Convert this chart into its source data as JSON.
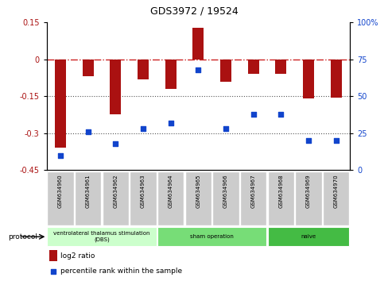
{
  "title": "GDS3972 / 19524",
  "samples": [
    "GSM634960",
    "GSM634961",
    "GSM634962",
    "GSM634963",
    "GSM634964",
    "GSM634965",
    "GSM634966",
    "GSM634967",
    "GSM634968",
    "GSM634969",
    "GSM634970"
  ],
  "log2_ratio": [
    -0.36,
    -0.07,
    -0.225,
    -0.08,
    -0.12,
    0.13,
    -0.09,
    -0.06,
    -0.06,
    -0.16,
    -0.155
  ],
  "percentile_rank": [
    10,
    26,
    18,
    28,
    32,
    68,
    28,
    38,
    38,
    20,
    20
  ],
  "bar_color": "#aa1111",
  "dot_color": "#1144cc",
  "ylim_left": [
    -0.45,
    0.15
  ],
  "ylim_right": [
    0,
    100
  ],
  "yticks_left": [
    0.15,
    0,
    -0.15,
    -0.3,
    -0.45
  ],
  "ytick_labels_left": [
    "0.15",
    "0",
    "-0.15",
    "-0.3",
    "-0.45"
  ],
  "yticks_right": [
    100,
    75,
    50,
    25,
    0
  ],
  "ytick_labels_right": [
    "100%",
    "75",
    "50",
    "25",
    "0"
  ],
  "protocol_groups": [
    {
      "label": "ventrolateral thalamus stimulation\n(DBS)",
      "start": 0,
      "end": 4,
      "color": "#ccffcc"
    },
    {
      "label": "sham operation",
      "start": 4,
      "end": 8,
      "color": "#77dd77"
    },
    {
      "label": "naive",
      "start": 8,
      "end": 11,
      "color": "#44bb44"
    }
  ],
  "legend_log2": "log2 ratio",
  "legend_pct": "percentile rank within the sample",
  "bar_color_legend": "#aa1111",
  "dot_color_legend": "#1144cc",
  "hline_zero_color": "#cc2222",
  "hline_dotted_color": "#555555",
  "sample_box_color": "#cccccc",
  "background_color": "#ffffff"
}
